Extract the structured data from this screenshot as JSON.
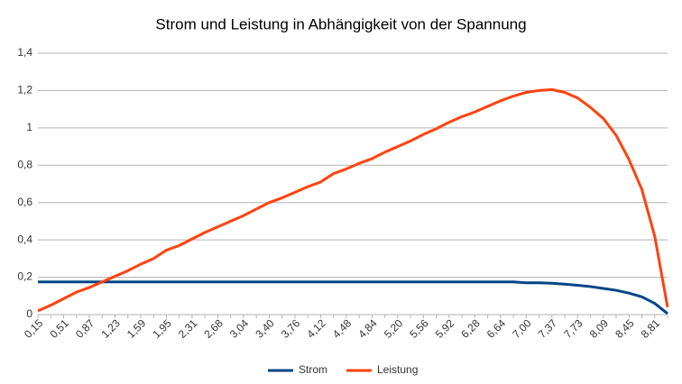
{
  "chart_data": {
    "type": "line",
    "title": "Strom und Leistung in Abhängigkeit von der Spannung",
    "categories": [
      "0,15",
      null,
      "0,51",
      null,
      "0,87",
      null,
      "1,23",
      null,
      "1,59",
      null,
      "1,95",
      null,
      "2,31",
      null,
      "2,68",
      null,
      "3,04",
      null,
      "3,40",
      null,
      "3,76",
      null,
      "4,12",
      null,
      "4,48",
      null,
      "4,84",
      null,
      "5,20",
      null,
      "5,56",
      null,
      "5,92",
      null,
      "6,28",
      null,
      "6,64",
      null,
      "7,00",
      null,
      "7,37",
      null,
      "7,73",
      null,
      "8,09",
      null,
      "8,45",
      null,
      "8,81",
      null
    ],
    "series": [
      {
        "name": "Strom",
        "color": "#004586",
        "values": [
          0.175,
          0.175,
          0.175,
          0.175,
          0.175,
          0.175,
          0.175,
          0.175,
          0.175,
          0.175,
          0.175,
          0.175,
          0.175,
          0.175,
          0.175,
          0.175,
          0.175,
          0.175,
          0.175,
          0.175,
          0.175,
          0.175,
          0.175,
          0.175,
          0.175,
          0.175,
          0.175,
          0.175,
          0.175,
          0.175,
          0.175,
          0.175,
          0.175,
          0.175,
          0.175,
          0.175,
          0.175,
          0.175,
          0.17,
          0.17,
          0.168,
          0.163,
          0.157,
          0.15,
          0.14,
          0.13,
          0.115,
          0.095,
          0.06,
          0.005
        ]
      },
      {
        "name": "Leistung",
        "color": "#ff420e",
        "values": [
          0.02,
          0.05,
          0.085,
          0.12,
          0.145,
          0.175,
          0.205,
          0.235,
          0.27,
          0.3,
          0.345,
          0.37,
          0.405,
          0.44,
          0.47,
          0.5,
          0.53,
          0.565,
          0.6,
          0.625,
          0.655,
          0.685,
          0.71,
          0.755,
          0.78,
          0.81,
          0.835,
          0.87,
          0.9,
          0.93,
          0.965,
          0.995,
          1.03,
          1.06,
          1.085,
          1.115,
          1.145,
          1.17,
          1.19,
          1.2,
          1.205,
          1.19,
          1.16,
          1.11,
          1.05,
          0.96,
          0.83,
          0.67,
          0.42,
          0.04
        ]
      }
    ],
    "ylim": [
      0,
      1.4
    ],
    "yticks": [
      0,
      {
        "value": 0.2,
        "label": "0,2"
      },
      {
        "value": 0.4,
        "label": "0,4"
      },
      {
        "value": 0.6,
        "label": "0,6"
      },
      {
        "value": 0.8,
        "label": "0,8"
      },
      1,
      {
        "value": 1.2,
        "label": "1,2"
      },
      {
        "value": 1.4,
        "label": "1,4"
      }
    ],
    "grid": true,
    "legend": "bottom"
  }
}
